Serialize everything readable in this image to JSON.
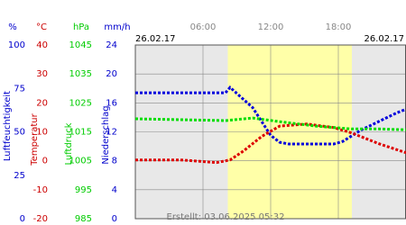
{
  "chart_data": {
    "type": "line",
    "date_left": "26.02.17",
    "date_right": "26.02.17",
    "footer": "Erstellt: 03.06.2025 05:32",
    "xlim": [
      0,
      24
    ],
    "xticks": [
      {
        "value": 6,
        "label": "06:00"
      },
      {
        "value": 12,
        "label": "12:00"
      },
      {
        "value": 18,
        "label": "18:00"
      }
    ],
    "shade": [
      8.2,
      19.2
    ],
    "shade_color": "#ffffa8",
    "axes": {
      "y": {
        "unit": "%",
        "title": "Luftfeuchtigkeit",
        "color": "#0000cc",
        "lim": [
          0,
          100
        ],
        "ticks": [
          0,
          25,
          50,
          75,
          100
        ]
      },
      "y2": {
        "unit": "°C",
        "title": "Temperatur",
        "color": "#cc0000",
        "lim": [
          -20,
          40
        ],
        "ticks": [
          -20,
          -10,
          0,
          10,
          20,
          30,
          40
        ]
      },
      "y3": {
        "unit": "hPa",
        "title": "Luftdruck",
        "color": "#00cc00",
        "lim": [
          985,
          1045
        ],
        "ticks": [
          985,
          995,
          1005,
          1015,
          1025,
          1035,
          1045
        ]
      },
      "y4": {
        "unit": "mm/h",
        "title": "Niederschlag",
        "color": "#0000cc",
        "lim": [
          0,
          24
        ],
        "ticks": [
          0,
          4,
          8,
          12,
          16,
          20,
          24
        ]
      }
    },
    "series": [
      {
        "axis": "y",
        "color": "#0000dd",
        "x": [
          0,
          4,
          8,
          8.4,
          10.4,
          12,
          12.8,
          13.6,
          15.2,
          17.6,
          18.4,
          20,
          21.6,
          23.2,
          24
        ],
        "values": [
          72.5,
          72.5,
          72.5,
          75.6,
          64,
          48,
          44,
          43,
          43,
          43,
          44.5,
          51,
          56,
          61,
          63
        ]
      },
      {
        "axis": "y2",
        "color": "#dd0000",
        "x": [
          0,
          4,
          7.2,
          8.4,
          9.6,
          11.2,
          12.8,
          15.2,
          17.6,
          19.2,
          21.6,
          24
        ],
        "values": [
          0.3,
          0.3,
          -0.6,
          0.3,
          3.4,
          8.4,
          12,
          12.7,
          11.5,
          9.6,
          5.9,
          2.8
        ]
      },
      {
        "axis": "y3",
        "color": "#00dd00",
        "x": [
          0,
          4,
          8,
          10.4,
          12.8,
          16,
          19.2,
          21.6,
          24
        ],
        "values": [
          1019.5,
          1019.2,
          1018.9,
          1019.8,
          1018.5,
          1017,
          1016,
          1016,
          1015.7
        ]
      }
    ]
  }
}
